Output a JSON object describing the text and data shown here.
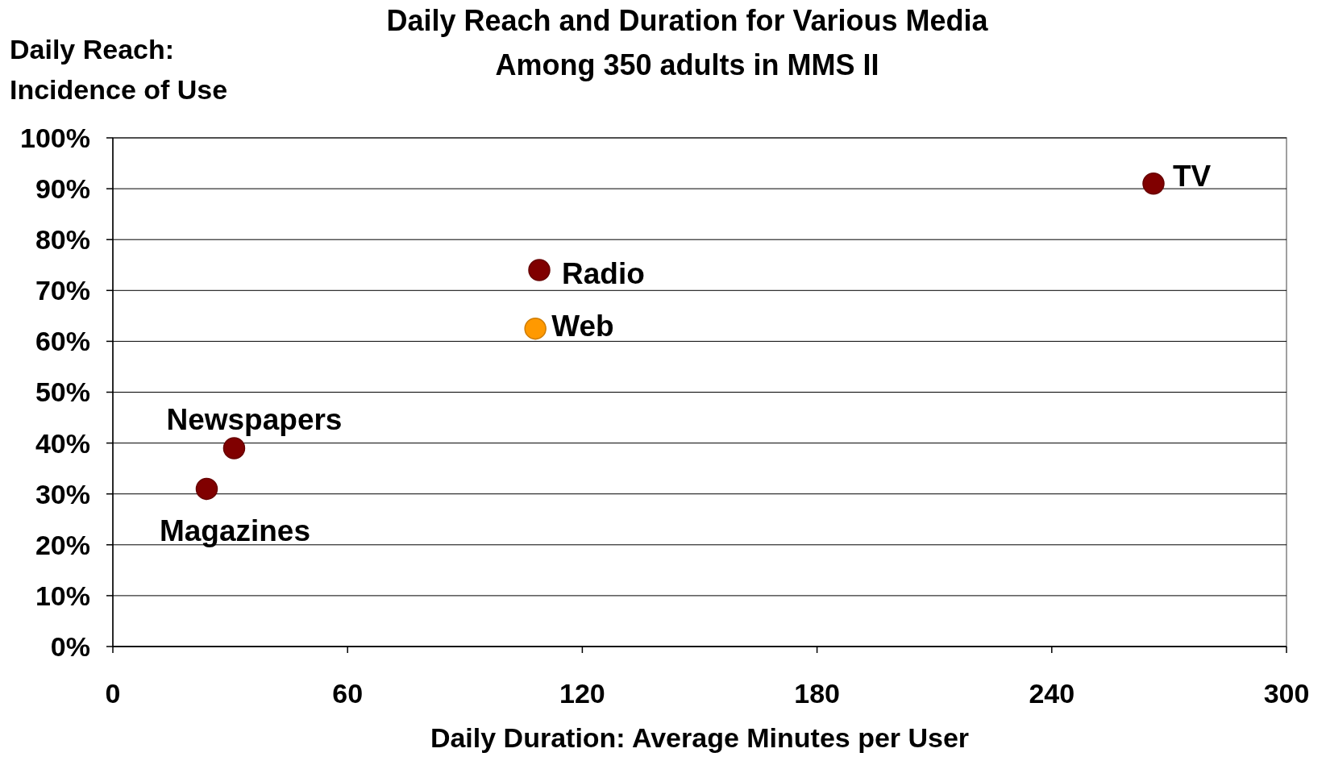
{
  "chart_data": {
    "type": "scatter",
    "title": "Daily Reach and Duration for Various Media",
    "subtitle": "Among 350 adults in MMS II",
    "xlabel": "Daily Duration: Average Minutes per User",
    "ylabel": "Daily Reach: Incidence of Use",
    "xlim": [
      0,
      300
    ],
    "xticks": [
      0,
      60,
      120,
      180,
      240,
      300
    ],
    "ylim": [
      0,
      100
    ],
    "yticks": [
      {
        "value": 0,
        "label": "0%"
      },
      {
        "value": 10,
        "label": "10%"
      },
      {
        "value": 20,
        "label": "20%"
      },
      {
        "value": 30,
        "label": "30%"
      },
      {
        "value": 40,
        "label": "40%"
      },
      {
        "value": 50,
        "label": "50%"
      },
      {
        "value": 60,
        "label": "60%"
      },
      {
        "value": 70,
        "label": "70%"
      },
      {
        "value": 80,
        "label": "80%"
      },
      {
        "value": 90,
        "label": "90%"
      },
      {
        "value": 100,
        "label": "100%"
      }
    ],
    "grid": "y",
    "marker": "circle",
    "series": [
      {
        "name": "TV",
        "color": "#800000",
        "x": [
          266
        ],
        "values": [
          91
        ]
      },
      {
        "name": "Radio",
        "color": "#800000",
        "x": [
          109
        ],
        "values": [
          74
        ]
      },
      {
        "name": "Web",
        "color": "#ff9900",
        "x": [
          108
        ],
        "values": [
          62.5
        ]
      },
      {
        "name": "Newspapers",
        "color": "#800000",
        "x": [
          31
        ],
        "values": [
          39
        ]
      },
      {
        "name": "Magazines",
        "color": "#800000",
        "x": [
          24
        ],
        "values": [
          31
        ]
      }
    ]
  }
}
